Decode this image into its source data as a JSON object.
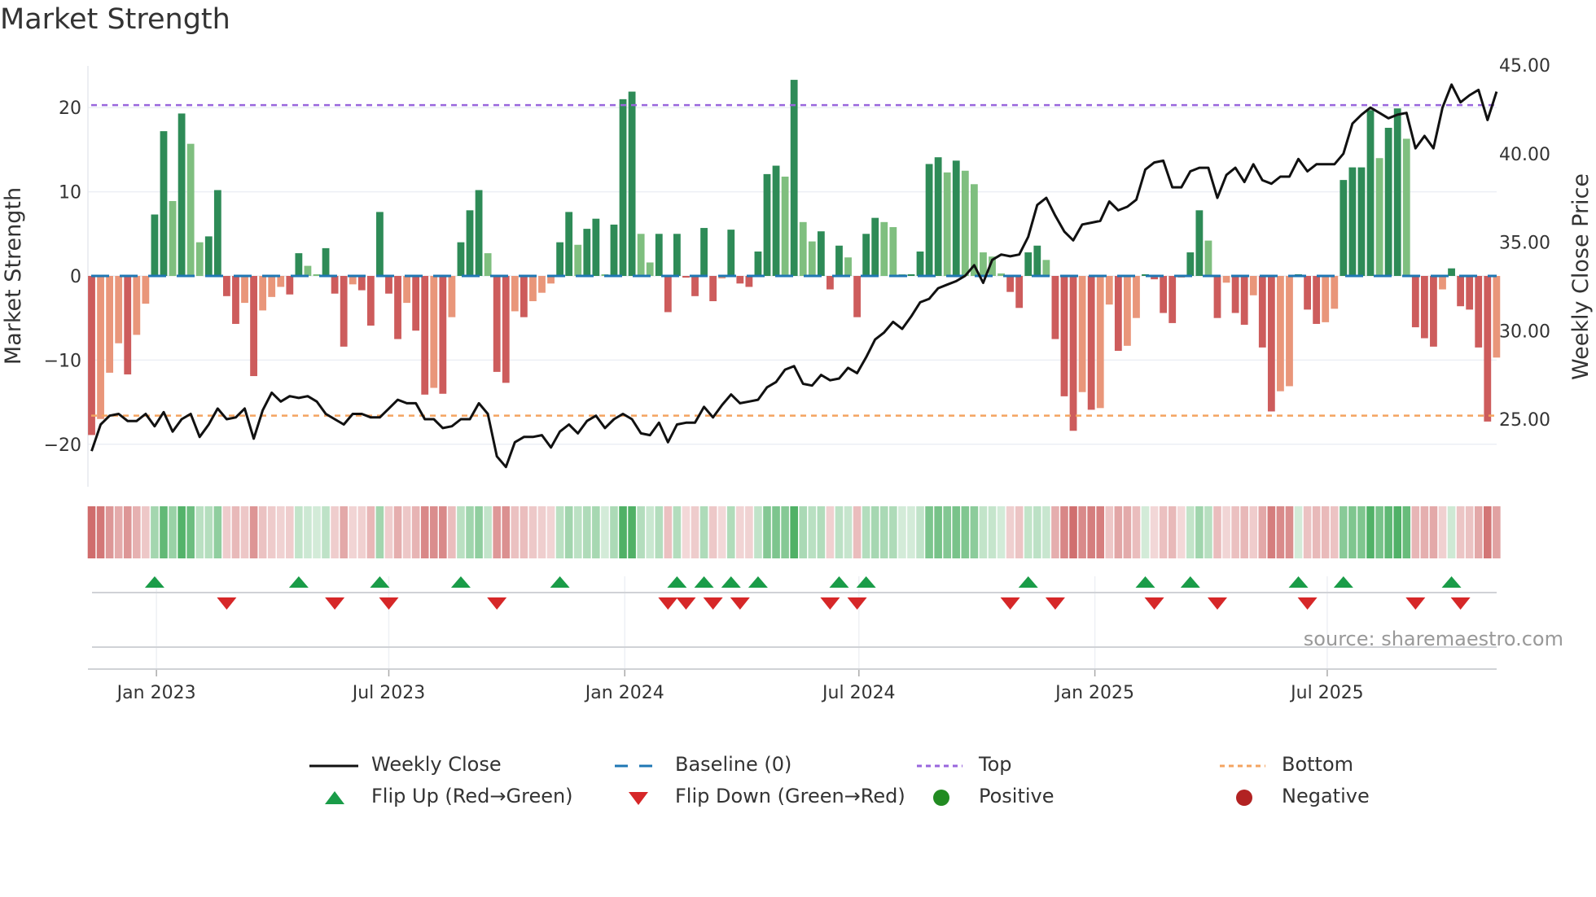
{
  "title": "Market Strength",
  "source": "source: sharemaestro.com",
  "colors": {
    "pos_strong": "#2e8b57",
    "pos_weak": "#7fbf7f",
    "neg_strong": "#cd5c5c",
    "neg_weak": "#e9967a",
    "baseline": "#1f77b4",
    "top": "#9966dd",
    "bottom": "#f4a460",
    "flip_up": "#1a9c48",
    "flip_down": "#d62728",
    "positive": "#228b22",
    "negative": "#b22222",
    "price": "#111111"
  },
  "legend": {
    "weekly_close": "Weekly Close",
    "baseline": "Baseline (0)",
    "top": "Top",
    "bottom": "Bottom",
    "flip_up": "Flip Up (Red→Green)",
    "flip_down": "Flip Down (Green→Red)",
    "positive": "Positive",
    "negative": "Negative"
  },
  "chart_data": {
    "type": "bar",
    "title": "Market Strength",
    "ylabel": "Market Strength",
    "y2label": "Weekly Close Price",
    "ylim": [
      -25,
      25
    ],
    "y2lim": [
      21.2,
      45
    ],
    "yticks": [
      {
        "v": 20,
        "label": "20"
      },
      {
        "v": 10,
        "label": "10"
      },
      {
        "v": 0,
        "label": "0"
      },
      {
        "v": -10,
        "label": "−10"
      },
      {
        "v": -20,
        "label": "−20"
      }
    ],
    "y2ticks": [
      {
        "v": 45,
        "label": "45.00"
      },
      {
        "v": 40,
        "label": "40.00"
      },
      {
        "v": 35,
        "label": "35.00"
      },
      {
        "v": 30,
        "label": "30.00"
      },
      {
        "v": 25,
        "label": "25.00"
      }
    ],
    "xticks": [
      {
        "week": 7.2,
        "label": "Jan 2023"
      },
      {
        "week": 33.0,
        "label": "Jul 2023"
      },
      {
        "week": 59.2,
        "label": "Jan 2024"
      },
      {
        "week": 85.2,
        "label": "Jul 2024"
      },
      {
        "week": 111.4,
        "label": "Jan 2025"
      },
      {
        "week": 137.2,
        "label": "Jul 2025"
      }
    ],
    "top_level": 20.3,
    "bottom_level": -16.6,
    "baseline": 0,
    "strength": [
      -18.9,
      -17.0,
      -11.5,
      -8.0,
      -11.7,
      -7.0,
      -3.3,
      7.3,
      17.2,
      8.9,
      19.3,
      15.7,
      4.0,
      4.7,
      10.2,
      -2.4,
      -5.7,
      -3.2,
      -11.9,
      -4.1,
      -2.5,
      -1.3,
      -2.2,
      2.7,
      1.2,
      0.2,
      3.3,
      -2.1,
      -8.4,
      -1.0,
      -1.7,
      -5.9,
      7.6,
      -2.1,
      -7.5,
      -3.2,
      -6.5,
      -14.1,
      -13.3,
      -14.0,
      -4.9,
      4.0,
      7.8,
      10.2,
      2.7,
      -11.4,
      -12.7,
      -4.2,
      -4.9,
      -3.0,
      -2.0,
      -0.9,
      4.0,
      7.6,
      3.7,
      5.6,
      6.8,
      0.2,
      6.1,
      21.0,
      21.9,
      5.0,
      1.6,
      5.0,
      -4.3,
      5.0,
      -0.2,
      -2.4,
      5.7,
      -3.0,
      -0.3,
      5.5,
      -0.9,
      -1.3,
      2.9,
      12.1,
      13.1,
      11.8,
      23.3,
      6.4,
      4.1,
      5.3,
      -1.6,
      3.6,
      2.2,
      -4.9,
      5.0,
      6.9,
      6.4,
      5.8,
      0.2,
      0.2,
      2.9,
      13.3,
      14.1,
      12.3,
      13.7,
      12.5,
      10.9,
      2.8,
      2.3,
      0.3,
      -1.9,
      -3.8,
      2.8,
      3.6,
      1.9,
      -7.5,
      -14.3,
      -18.4,
      -13.8,
      -15.9,
      -15.7,
      -3.4,
      -8.9,
      -8.3,
      -5.0,
      0.2,
      -0.4,
      -4.4,
      -5.6,
      -0.2,
      2.8,
      7.8,
      4.2,
      -5.0,
      -0.8,
      -4.4,
      -5.8,
      -2.3,
      -8.5,
      -16.1,
      -13.7,
      -13.1,
      0.2,
      -4.0,
      -5.7,
      -5.5,
      -3.9,
      11.4,
      12.9,
      12.9,
      19.7,
      14.0,
      17.6,
      19.9,
      16.3,
      -6.1,
      -7.4,
      -8.4,
      -1.6,
      0.9,
      -3.6,
      -4.0,
      -8.5,
      -17.3,
      -9.7
    ],
    "weekly_close": [
      23.2,
      24.7,
      25.2,
      25.3,
      24.9,
      24.9,
      25.3,
      24.6,
      25.4,
      24.3,
      25.0,
      25.3,
      24.0,
      24.7,
      25.6,
      25.0,
      25.1,
      25.6,
      23.9,
      25.5,
      26.5,
      26.0,
      26.3,
      26.2,
      26.3,
      26.0,
      25.3,
      25.0,
      24.7,
      25.3,
      25.3,
      25.1,
      25.1,
      25.6,
      26.1,
      25.9,
      25.9,
      25.0,
      25.0,
      24.5,
      24.6,
      25.0,
      25.0,
      25.9,
      25.3,
      22.9,
      22.3,
      23.7,
      24.0,
      24.0,
      24.1,
      23.4,
      24.3,
      24.7,
      24.2,
      24.9,
      25.2,
      24.5,
      25.0,
      25.3,
      25.0,
      24.2,
      24.1,
      24.8,
      23.7,
      24.7,
      24.8,
      24.8,
      25.7,
      25.1,
      25.8,
      26.4,
      25.9,
      26.0,
      26.1,
      26.8,
      27.1,
      27.8,
      28.0,
      27.0,
      26.9,
      27.5,
      27.2,
      27.3,
      27.9,
      27.6,
      28.5,
      29.5,
      29.9,
      30.5,
      30.1,
      30.8,
      31.6,
      31.8,
      32.4,
      32.6,
      32.8,
      33.1,
      33.7,
      32.7,
      34.0,
      34.3,
      34.2,
      34.3,
      35.3,
      37.1,
      37.5,
      36.5,
      35.6,
      35.1,
      36.0,
      36.1,
      36.2,
      37.3,
      36.8,
      37.0,
      37.4,
      39.1,
      39.5,
      39.6,
      38.1,
      38.1,
      39.0,
      39.2,
      39.2,
      37.5,
      38.8,
      39.2,
      38.4,
      39.4,
      38.5,
      38.3,
      38.7,
      38.7,
      39.7,
      39.0,
      39.4,
      39.4,
      39.4,
      40.0,
      41.7,
      42.2,
      42.6,
      42.3,
      42.0,
      42.2,
      42.3,
      40.3,
      41.0,
      40.3,
      42.6,
      43.9,
      42.9,
      43.3,
      43.6,
      41.9,
      43.5
    ],
    "flip_up_weeks": [
      7,
      23,
      32,
      41,
      52,
      65,
      68,
      71,
      74,
      83,
      86,
      104,
      117,
      122,
      134,
      139,
      151
    ],
    "flip_down_weeks": [
      15,
      27,
      33,
      45,
      64,
      66,
      69,
      72,
      82,
      85,
      102,
      107,
      118,
      125,
      135,
      147,
      152
    ],
    "legend_position": "bottom"
  }
}
